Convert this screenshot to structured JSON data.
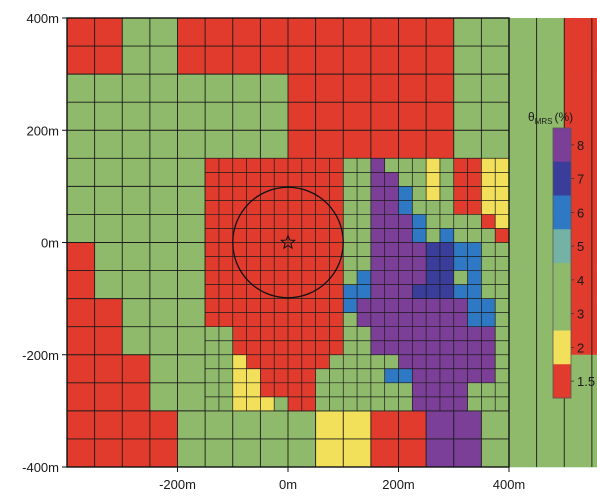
{
  "chart_data": {
    "type": "heatmap",
    "title": "",
    "xlabel": "",
    "ylabel": "",
    "x_ticks": [
      "-200m",
      "0m",
      "200m",
      "400m"
    ],
    "y_ticks": [
      "400m",
      "200m",
      "0m",
      "-200m",
      "-400m"
    ],
    "xlim": [
      -400,
      400
    ],
    "ylim": [
      -400,
      400
    ],
    "grid": true,
    "colorbar": {
      "title_main": "θ",
      "title_sub": "MRS",
      "title_unit": "(%)",
      "placement": "right",
      "levels": [
        {
          "label": "8",
          "color": "#7b3f98"
        },
        {
          "label": "7",
          "color": "#3a3d9a"
        },
        {
          "label": "6",
          "color": "#2f78c4"
        },
        {
          "label": "5",
          "color": "#73b2a4"
        },
        {
          "label": "4",
          "color": "#8fba6c"
        },
        {
          "label": "3",
          "color": "#8fba6c"
        },
        {
          "label": "2",
          "color": "#f2e05a"
        },
        {
          "label": "1.5",
          "color": "#e03b2c"
        }
      ]
    },
    "palette": {
      "R": "#e03b2c",
      "G": "#8fba6c",
      "Y": "#f2e05a",
      "C": "#73b2a4",
      "B": "#2f78c4",
      "D": "#3a3d9a",
      "P": "#7b3f98"
    },
    "cell_size_m": 50,
    "rows": [
      "RRGGRRRRRRRRRRGGGGRRRR",
      "RRGGRRRRRRRRRRGGGGRRRR",
      "GGGGGGGGRRRRRRGGGGRRRR",
      "GGGGGGGGRRRRRRGGGGRRRR",
      "GGGGGGGGRRRRRRGGGGRRRR",
      "GGGGGGGGRRRRRRGGGGRRRR",
      "GGGGGGGGRRRRRRGGGGRRRR",
      "GGGGGGGGRRRRRRGGGGRRRR",
      "RGGGGGGGRRRRRRGGGGRRRR",
      "RGGGGGGGRRRRRRGGGGRRRR",
      "RRGGGGGGRRRRGGGGGGRRRR",
      "RRGGGGGGRRRRGGGGGGRRRR",
      "RRRGGGGGGYYRRGGGGGGGRR",
      "RRRGGGGGGYYRRGGGGGGGRR",
      "RRRRGGGGGYYRRPPGGGGGRR",
      "RRRRGGGGGYYRRPPGGGGGRR"
    ],
    "fine_cell_size_m": 25,
    "fine_origin_m": [
      -150,
      150
    ],
    "fine_rows": [
      "RRRRRRRRRRGGPGGGYGRRYY",
      "RRRRRRRRRRGGPPGGYGRRYY",
      "RRRRRRRRRRGGPPBGYGRRYY",
      "RRRRRRRRRRGGPPBGGGRRYY",
      "RRRRRRRRRRGGPPPBGGGGRY",
      "RRRRRRRRRRGGPPPBGBGGGR",
      "RRRRRRRRRRGGPPPPDDBBGG",
      "RRRRRRRRRRGGPPPPDDBBGG",
      "RRRRRRRRRRGBPPPPDDGBGG",
      "RRRRRRRRRRBBPPPDDDBBGG",
      "RRRRRRRRRRBPPPPPPPPBBG",
      "RRRRRRRRRRGPPPPPPPPBBG",
      "GGRRRRRRRRGGPPPPPPPPPG",
      "GGRRRRRRRRGGPPPPPPPPPG",
      "GGYRRRRRRGGGGGPPPPPPPG",
      "GGYYRRRRGGGGGBBPPPPPPG",
      "GGYYRRRRGGGGGGGPPPPGGG",
      "GGYYYGRRGGGGGGGPPPPGGG"
    ],
    "annotations": {
      "circle": {
        "center": [
          0,
          0
        ],
        "radius_m": 100
      },
      "star": [
        0,
        0
      ]
    }
  }
}
